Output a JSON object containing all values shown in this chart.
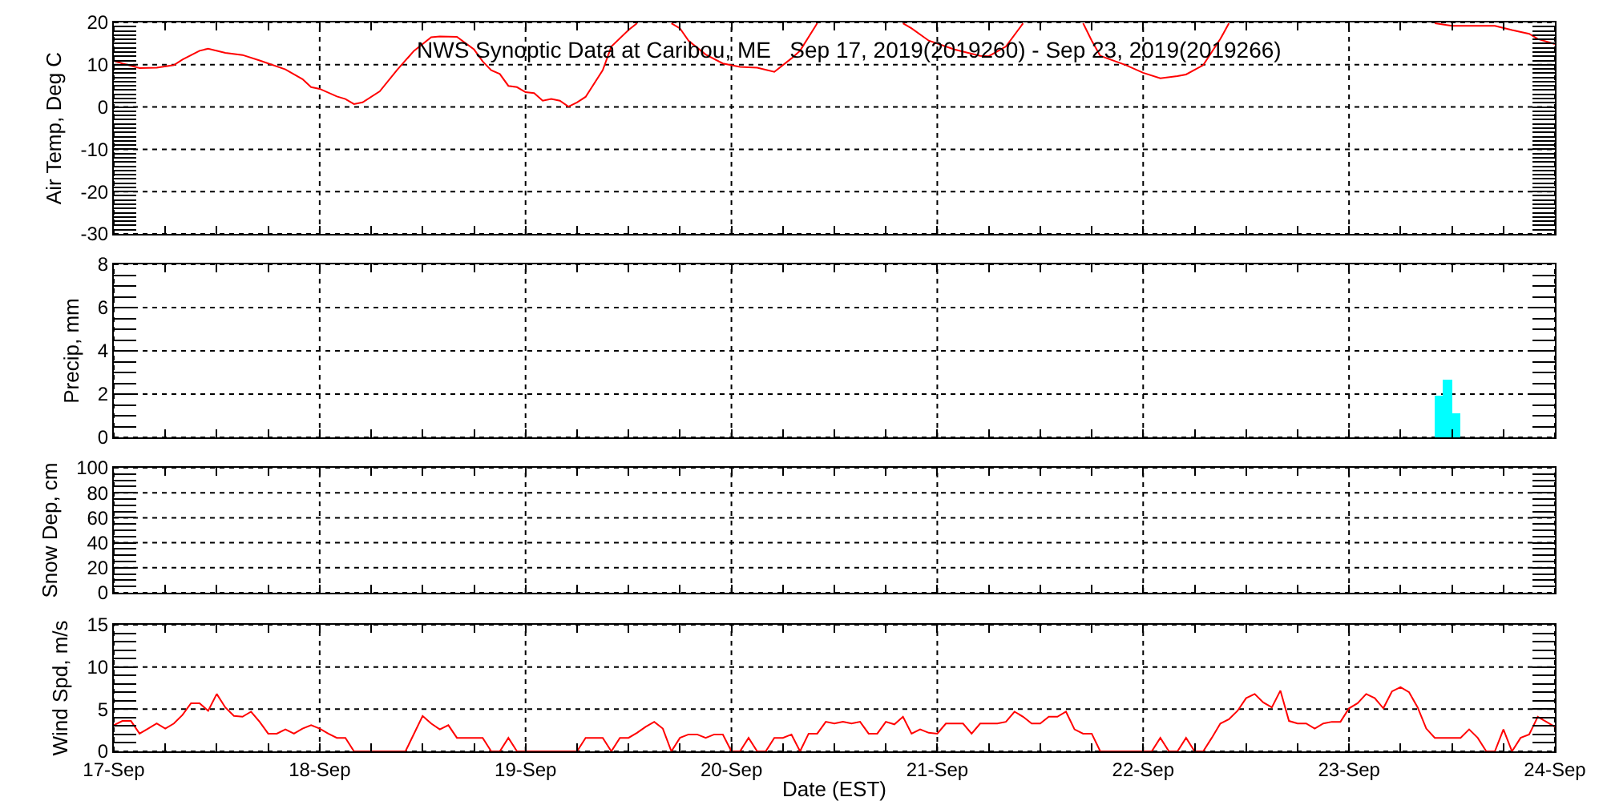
{
  "chart_data": [
    {
      "type": "line",
      "title": "NWS Synoptic Data at Caribou, ME   Sep 17, 2019(2019260) - Sep 23, 2019(2019266)",
      "ylabel": "Air Temp, Deg C",
      "x": [
        "2019-09-17T00:00",
        "2019-09-17T01:00",
        "2019-09-17T03:00",
        "2019-09-17T05:00",
        "2019-09-17T07:00",
        "2019-09-17T08:00",
        "2019-09-17T10:00",
        "2019-09-17T11:00",
        "2019-09-17T13:00",
        "2019-09-17T15:00",
        "2019-09-17T17:00",
        "2019-09-17T20:00",
        "2019-09-17T22:00",
        "2019-09-17T23:00",
        "2019-09-18T00:00",
        "2019-09-18T02:00",
        "2019-09-18T03:00",
        "2019-09-18T04:00",
        "2019-09-18T05:00",
        "2019-09-18T07:00",
        "2019-09-18T09:00",
        "2019-09-18T11:00",
        "2019-09-18T13:00",
        "2019-09-18T14:00",
        "2019-09-18T16:00",
        "2019-09-18T18:00",
        "2019-09-18T19:00",
        "2019-09-18T20:00",
        "2019-09-18T21:00",
        "2019-09-18T22:00",
        "2019-09-18T23:00",
        "2019-09-19T00:00",
        "2019-09-19T01:00",
        "2019-09-19T02:00",
        "2019-09-19T03:00",
        "2019-09-19T04:00",
        "2019-09-19T05:00",
        "2019-09-19T06:00",
        "2019-09-19T07:00",
        "2019-09-19T09:00",
        "2019-09-19T10:00",
        "2019-09-19T12:00",
        "2019-09-19T13:00",
        "2019-09-19T14:00",
        "2019-09-19T17:00",
        "2019-09-19T18:00",
        "2019-09-19T19:00",
        "2019-09-19T21:00",
        "2019-09-19T23:00",
        "2019-09-20T01:00",
        "2019-09-20T03:00",
        "2019-09-20T05:00",
        "2019-09-20T07:00",
        "2019-09-20T08:00",
        "2019-09-20T10:00",
        "2019-09-20T11:00",
        "2019-09-20T20:00",
        "2019-09-20T21:00",
        "2019-09-20T23:00",
        "2019-09-21T02:00",
        "2019-09-21T05:00",
        "2019-09-21T06:00",
        "2019-09-21T08:00",
        "2019-09-21T10:00",
        "2019-09-21T11:00",
        "2019-09-21T17:00",
        "2019-09-21T18:00",
        "2019-09-21T19:00",
        "2019-09-21T22:00",
        "2019-09-22T00:00",
        "2019-09-22T02:00",
        "2019-09-22T04:00",
        "2019-09-22T05:00",
        "2019-09-22T07:00",
        "2019-09-22T09:00",
        "2019-09-22T10:00",
        "2019-09-22T11:00",
        "2019-09-23T10:00",
        "2019-09-23T12:00",
        "2019-09-23T15:00",
        "2019-09-23T17:00",
        "2019-09-23T19:00",
        "2019-09-23T21:00",
        "2019-09-23T22:00",
        "2019-09-24T00:00"
      ],
      "series": [
        {
          "color": "#ff0000",
          "values": [
            10.9,
            10.3,
            9.2,
            9.3,
            9.9,
            11.2,
            13.3,
            13.8,
            12.8,
            12.3,
            11.0,
            8.9,
            6.6,
            4.7,
            4.3,
            2.5,
            1.9,
            0.7,
            1.1,
            3.7,
            8.7,
            13.3,
            16.5,
            16.7,
            16.6,
            13.6,
            10.8,
            8.7,
            7.8,
            5.0,
            4.7,
            3.5,
            3.3,
            1.5,
            1.9,
            1.5,
            0.1,
            1.1,
            2.4,
            8.7,
            14.3,
            18.2,
            19.8,
            null,
            19.8,
            18.6,
            15.7,
            12.4,
            10.3,
            9.5,
            9.3,
            8.3,
            11.5,
            13.3,
            19.8,
            null,
            19.8,
            18.6,
            15.7,
            13.6,
            12.1,
            12.0,
            14.3,
            19.8,
            null,
            19.8,
            15.7,
            12.1,
            9.9,
            8.1,
            6.8,
            7.3,
            7.7,
            9.9,
            16.1,
            19.8,
            null,
            19.8,
            19.2,
            19.2,
            19.2,
            18.2,
            17.3,
            16.1,
            14.9
          ]
        }
      ],
      "xlim": [
        "2019-09-17T00:00",
        "2019-09-24T00:00"
      ],
      "ylim": [
        -30,
        20
      ],
      "yticks": [
        -30,
        {
          "value": -29,
          "label": null
        },
        {
          "value": -28,
          "label": null
        },
        {
          "value": -27,
          "label": null
        },
        {
          "value": -26,
          "label": null
        },
        {
          "value": -25,
          "label": null
        },
        {
          "value": -24,
          "label": null
        },
        {
          "value": -23,
          "label": null
        },
        {
          "value": -22,
          "label": null
        },
        {
          "value": -21,
          "label": null
        },
        -20,
        {
          "value": -19,
          "label": null
        },
        {
          "value": -18,
          "label": null
        },
        {
          "value": -17,
          "label": null
        },
        {
          "value": -16,
          "label": null
        },
        {
          "value": -15,
          "label": null
        },
        {
          "value": -14,
          "label": null
        },
        {
          "value": -13,
          "label": null
        },
        {
          "value": -12,
          "label": null
        },
        {
          "value": -11,
          "label": null
        },
        -10,
        {
          "value": -9,
          "label": null
        },
        {
          "value": -8,
          "label": null
        },
        {
          "value": -7,
          "label": null
        },
        {
          "value": -6,
          "label": null
        },
        {
          "value": -5,
          "label": null
        },
        {
          "value": -4,
          "label": null
        },
        {
          "value": -3,
          "label": null
        },
        {
          "value": -2,
          "label": null
        },
        {
          "value": -1,
          "label": null
        },
        0,
        {
          "value": 1,
          "label": null
        },
        {
          "value": 2,
          "label": null
        },
        {
          "value": 3,
          "label": null
        },
        {
          "value": 4,
          "label": null
        },
        {
          "value": 5,
          "label": null
        },
        {
          "value": 6,
          "label": null
        },
        {
          "value": 7,
          "label": null
        },
        {
          "value": 8,
          "label": null
        },
        {
          "value": 9,
          "label": null
        },
        10,
        {
          "value": 11,
          "label": null
        },
        {
          "value": 12,
          "label": null
        },
        {
          "value": 13,
          "label": null
        },
        {
          "value": 14,
          "label": null
        },
        {
          "value": 15,
          "label": null
        },
        {
          "value": 16,
          "label": null
        },
        {
          "value": 17,
          "label": null
        },
        {
          "value": 18,
          "label": null
        },
        {
          "value": 19,
          "label": null
        },
        20
      ],
      "grid": true,
      "tick_labels": "y"
    },
    {
      "type": "bar",
      "ylabel": "Precip, mm",
      "x": [
        "2019-09-23T10:30",
        "2019-09-23T11:30",
        "2019-09-23T12:30"
      ],
      "series": [
        {
          "color": "#00ffff",
          "values": [
            1.9,
            2.7,
            1.1
          ]
        }
      ],
      "xlim": [
        "2019-09-17T00:00",
        "2019-09-24T00:00"
      ],
      "ylim": [
        0,
        8
      ],
      "yticks": [
        0,
        {
          "value": 0.5,
          "label": null
        },
        {
          "value": 1,
          "label": null
        },
        {
          "value": 1.5,
          "label": null
        },
        2,
        {
          "value": 2.5,
          "label": null
        },
        {
          "value": 3,
          "label": null
        },
        {
          "value": 3.5,
          "label": null
        },
        4,
        {
          "value": 4.5,
          "label": null
        },
        {
          "value": 5,
          "label": null
        },
        {
          "value": 5.5,
          "label": null
        },
        6,
        {
          "value": 6.5,
          "label": null
        },
        {
          "value": 7,
          "label": null
        },
        {
          "value": 7.5,
          "label": null
        },
        8
      ],
      "grid": true,
      "tick_labels": "y"
    },
    {
      "type": "line",
      "ylabel": "Snow Dep, cm",
      "xlim": [
        "2019-09-17T00:00",
        "2019-09-24T00:00"
      ],
      "ylim": [
        0,
        100
      ],
      "yticks": [
        0,
        {
          "value": 5,
          "label": null
        },
        {
          "value": 10,
          "label": null
        },
        {
          "value": 15,
          "label": null
        },
        20,
        {
          "value": 25,
          "label": null
        },
        {
          "value": 30,
          "label": null
        },
        {
          "value": 35,
          "label": null
        },
        40,
        {
          "value": 45,
          "label": null
        },
        {
          "value": 50,
          "label": null
        },
        {
          "value": 55,
          "label": null
        },
        60,
        {
          "value": 65,
          "label": null
        },
        {
          "value": 70,
          "label": null
        },
        {
          "value": 75,
          "label": null
        },
        80,
        {
          "value": 85,
          "label": null
        },
        {
          "value": 90,
          "label": null
        },
        {
          "value": 95,
          "label": null
        },
        100
      ],
      "grid": true,
      "tick_labels": "y"
    },
    {
      "type": "line",
      "ylabel": "Wind Spd, m/s",
      "xlabel": "Date (EST)",
      "x": [
        "2019-09-17T00:00",
        "2019-09-17T01:00",
        "2019-09-17T02:00",
        "2019-09-17T03:00",
        "2019-09-17T04:00",
        "2019-09-17T05:00",
        "2019-09-17T06:00",
        "2019-09-17T07:00",
        "2019-09-17T08:00",
        "2019-09-17T09:00",
        "2019-09-17T10:00",
        "2019-09-17T11:00",
        "2019-09-17T12:00",
        "2019-09-17T13:00",
        "2019-09-17T14:00",
        "2019-09-17T15:00",
        "2019-09-17T16:00",
        "2019-09-17T17:00",
        "2019-09-17T18:00",
        "2019-09-17T19:00",
        "2019-09-17T20:00",
        "2019-09-17T21:00",
        "2019-09-17T22:00",
        "2019-09-17T23:00",
        "2019-09-18T00:00",
        "2019-09-18T01:00",
        "2019-09-18T02:00",
        "2019-09-18T03:00",
        "2019-09-18T04:00",
        "2019-09-18T10:00",
        "2019-09-18T12:00",
        "2019-09-18T13:00",
        "2019-09-18T14:00",
        "2019-09-18T15:00",
        "2019-09-18T16:00",
        "2019-09-18T19:00",
        "2019-09-18T20:00",
        "2019-09-18T21:00",
        "2019-09-18T22:00",
        "2019-09-18T23:00",
        "2019-09-19T06:00",
        "2019-09-19T07:00",
        "2019-09-19T09:00",
        "2019-09-19T10:00",
        "2019-09-19T11:00",
        "2019-09-19T12:00",
        "2019-09-19T13:00",
        "2019-09-19T14:00",
        "2019-09-19T15:00",
        "2019-09-19T16:00",
        "2019-09-19T17:00",
        "2019-09-19T18:00",
        "2019-09-19T19:00",
        "2019-09-19T20:00",
        "2019-09-19T21:00",
        "2019-09-19T22:00",
        "2019-09-19T23:00",
        "2019-09-20T00:00",
        "2019-09-20T01:00",
        "2019-09-20T02:00",
        "2019-09-20T03:00",
        "2019-09-20T04:00",
        "2019-09-20T05:00",
        "2019-09-20T06:00",
        "2019-09-20T07:00",
        "2019-09-20T08:00",
        "2019-09-20T09:00",
        "2019-09-20T10:00",
        "2019-09-20T11:00",
        "2019-09-20T12:00",
        "2019-09-20T13:00",
        "2019-09-20T14:00",
        "2019-09-20T15:00",
        "2019-09-20T16:00",
        "2019-09-20T17:00",
        "2019-09-20T18:00",
        "2019-09-20T19:00",
        "2019-09-20T20:00",
        "2019-09-20T21:00",
        "2019-09-20T22:00",
        "2019-09-20T23:00",
        "2019-09-21T00:00",
        "2019-09-21T01:00",
        "2019-09-21T02:00",
        "2019-09-21T03:00",
        "2019-09-21T04:00",
        "2019-09-21T05:00",
        "2019-09-21T06:00",
        "2019-09-21T07:00",
        "2019-09-21T08:00",
        "2019-09-21T09:00",
        "2019-09-21T10:00",
        "2019-09-21T11:00",
        "2019-09-21T12:00",
        "2019-09-21T13:00",
        "2019-09-21T14:00",
        "2019-09-21T15:00",
        "2019-09-21T16:00",
        "2019-09-21T17:00",
        "2019-09-21T18:00",
        "2019-09-21T19:00",
        "2019-09-22T01:00",
        "2019-09-22T02:00",
        "2019-09-22T03:00",
        "2019-09-22T04:00",
        "2019-09-22T05:00",
        "2019-09-22T06:00",
        "2019-09-22T07:00",
        "2019-09-22T08:00",
        "2019-09-22T09:00",
        "2019-09-22T10:00",
        "2019-09-22T11:00",
        "2019-09-22T12:00",
        "2019-09-22T13:00",
        "2019-09-22T14:00",
        "2019-09-22T15:00",
        "2019-09-22T16:00",
        "2019-09-22T17:00",
        "2019-09-22T18:00",
        "2019-09-22T19:00",
        "2019-09-22T20:00",
        "2019-09-22T21:00",
        "2019-09-22T22:00",
        "2019-09-22T23:00",
        "2019-09-23T00:00",
        "2019-09-23T01:00",
        "2019-09-23T02:00",
        "2019-09-23T03:00",
        "2019-09-23T04:00",
        "2019-09-23T05:00",
        "2019-09-23T06:00",
        "2019-09-23T07:00",
        "2019-09-23T08:00",
        "2019-09-23T09:00",
        "2019-09-23T10:00",
        "2019-09-23T11:00",
        "2019-09-23T12:00",
        "2019-09-23T13:00",
        "2019-09-23T14:00",
        "2019-09-23T15:00",
        "2019-09-23T16:00",
        "2019-09-23T17:00",
        "2019-09-23T18:00",
        "2019-09-23T19:00",
        "2019-09-23T20:00",
        "2019-09-23T21:00",
        "2019-09-23T22:00",
        "2019-09-23T23:00",
        "2019-09-24T00:00"
      ],
      "series": [
        {
          "color": "#ff0000",
          "values": [
            3.1,
            3.6,
            3.6,
            2.1,
            2.7,
            3.3,
            2.7,
            3.3,
            4.3,
            5.7,
            5.7,
            4.8,
            6.8,
            5.2,
            4.2,
            4.1,
            4.7,
            3.5,
            2.1,
            2.1,
            2.6,
            2.1,
            2.7,
            3.1,
            2.7,
            2.1,
            1.6,
            1.6,
            0,
            0,
            4.2,
            3.3,
            2.6,
            3.1,
            1.6,
            1.6,
            0,
            0,
            1.6,
            0,
            0,
            1.6,
            1.6,
            0,
            1.6,
            1.6,
            2.2,
            2.9,
            3.5,
            2.7,
            0,
            1.6,
            2.0,
            2.0,
            1.6,
            2.0,
            2.0,
            0,
            0,
            1.6,
            0,
            0,
            1.6,
            1.6,
            2.0,
            0,
            2.1,
            2.1,
            3.5,
            3.3,
            3.5,
            3.3,
            3.5,
            2.1,
            2.1,
            3.5,
            3.2,
            4.1,
            2.1,
            2.6,
            2.2,
            2.1,
            3.3,
            3.3,
            3.3,
            2.1,
            3.3,
            3.3,
            3.3,
            3.5,
            4.7,
            4.1,
            3.3,
            3.3,
            4.1,
            4.1,
            4.7,
            2.6,
            2.1,
            2.1,
            0,
            0,
            1.6,
            0,
            0,
            1.6,
            0,
            0,
            1.6,
            3.3,
            3.8,
            4.8,
            6.3,
            6.8,
            5.8,
            5.2,
            7.2,
            3.6,
            3.3,
            3.3,
            2.7,
            3.3,
            3.5,
            3.5,
            5.1,
            5.7,
            6.8,
            6.3,
            5.1,
            7.1,
            7.6,
            7.0,
            5.2,
            2.7,
            1.6,
            1.6,
            1.6,
            1.6,
            2.6,
            1.6,
            0,
            0,
            2.6,
            0,
            1.6,
            2.0,
            4.1,
            3.5,
            2.9
          ]
        }
      ],
      "xlim": [
        "2019-09-17T00:00",
        "2019-09-24T00:00"
      ],
      "xticks": [
        {
          "value": "2019-09-17T00:00",
          "label": "17-Sep"
        },
        {
          "value": "2019-09-17T06:00",
          "label": null
        },
        {
          "value": "2019-09-17T12:00",
          "label": null
        },
        {
          "value": "2019-09-17T18:00",
          "label": null
        },
        {
          "value": "2019-09-18T00:00",
          "label": "18-Sep"
        },
        {
          "value": "2019-09-18T06:00",
          "label": null
        },
        {
          "value": "2019-09-18T12:00",
          "label": null
        },
        {
          "value": "2019-09-18T18:00",
          "label": null
        },
        {
          "value": "2019-09-19T00:00",
          "label": "19-Sep"
        },
        {
          "value": "2019-09-19T06:00",
          "label": null
        },
        {
          "value": "2019-09-19T12:00",
          "label": null
        },
        {
          "value": "2019-09-19T18:00",
          "label": null
        },
        {
          "value": "2019-09-20T00:00",
          "label": "20-Sep"
        },
        {
          "value": "2019-09-20T06:00",
          "label": null
        },
        {
          "value": "2019-09-20T12:00",
          "label": null
        },
        {
          "value": "2019-09-20T18:00",
          "label": null
        },
        {
          "value": "2019-09-21T00:00",
          "label": "21-Sep"
        },
        {
          "value": "2019-09-21T06:00",
          "label": null
        },
        {
          "value": "2019-09-21T12:00",
          "label": null
        },
        {
          "value": "2019-09-21T18:00",
          "label": null
        },
        {
          "value": "2019-09-22T00:00",
          "label": "22-Sep"
        },
        {
          "value": "2019-09-22T06:00",
          "label": null
        },
        {
          "value": "2019-09-22T12:00",
          "label": null
        },
        {
          "value": "2019-09-22T18:00",
          "label": null
        },
        {
          "value": "2019-09-23T00:00",
          "label": "23-Sep"
        },
        {
          "value": "2019-09-23T06:00",
          "label": null
        },
        {
          "value": "2019-09-23T12:00",
          "label": null
        },
        {
          "value": "2019-09-23T18:00",
          "label": null
        },
        {
          "value": "2019-09-24T00:00",
          "label": "24-Sep"
        }
      ],
      "ylim": [
        0,
        15
      ],
      "yticks": [
        0,
        {
          "value": 1,
          "label": null
        },
        {
          "value": 2,
          "label": null
        },
        {
          "value": 3,
          "label": null
        },
        {
          "value": 4,
          "label": null
        },
        5,
        {
          "value": 6,
          "label": null
        },
        {
          "value": 7,
          "label": null
        },
        {
          "value": 8,
          "label": null
        },
        {
          "value": 9,
          "label": null
        },
        10,
        {
          "value": 11,
          "label": null
        },
        {
          "value": 12,
          "label": null
        },
        {
          "value": 13,
          "label": null
        },
        {
          "value": 14,
          "label": null
        },
        15
      ],
      "grid": true
    }
  ]
}
